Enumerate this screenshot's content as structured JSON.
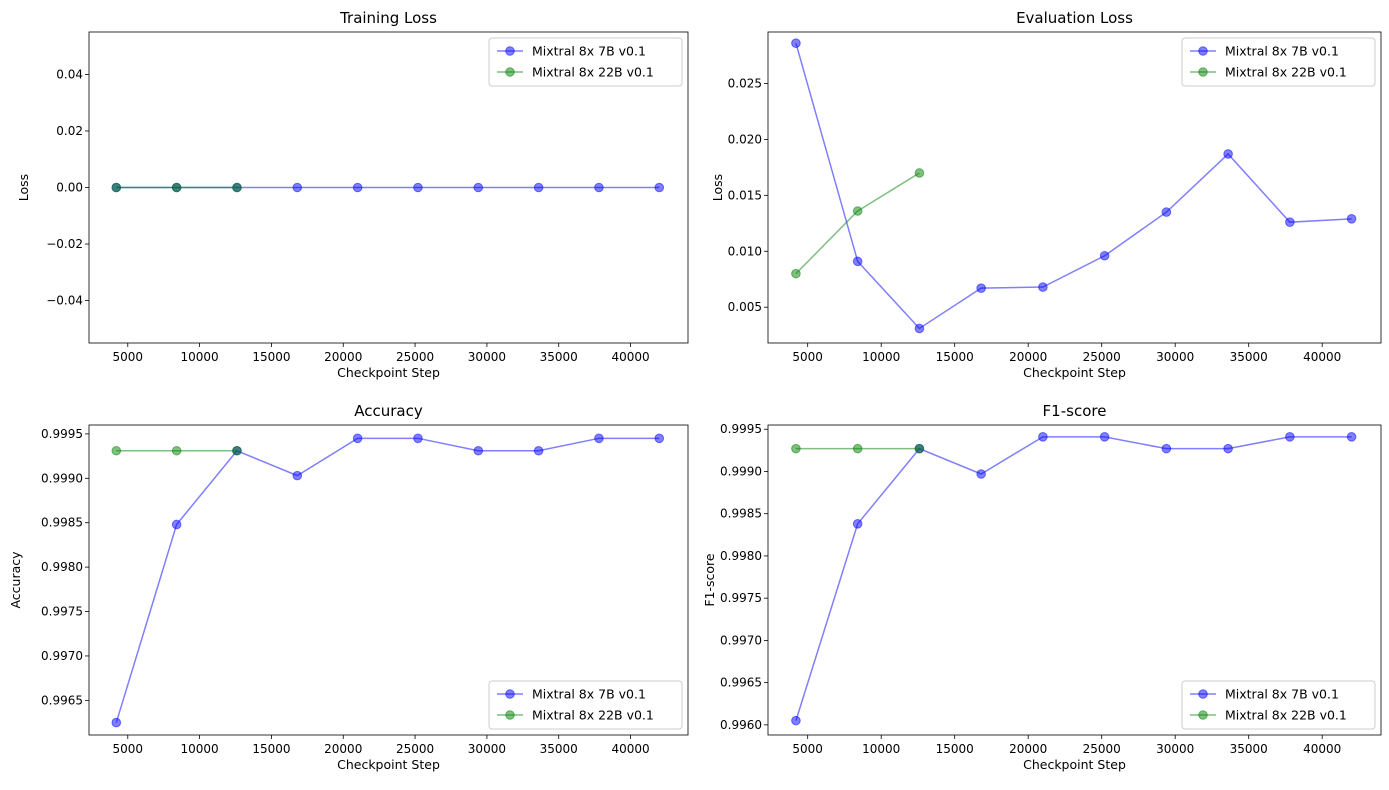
{
  "chart_data": [
    {
      "type": "line",
      "title": "Training Loss",
      "xlabel": "Checkpoint Step",
      "ylabel": "Loss",
      "xlim": [
        2300,
        44000
      ],
      "ylim": [
        -0.055,
        0.055
      ],
      "xticks": [
        5000,
        10000,
        15000,
        20000,
        25000,
        30000,
        35000,
        40000
      ],
      "yticks": [
        -0.04,
        -0.02,
        0.0,
        0.02,
        0.04
      ],
      "ytick_labels": [
        "−0.04",
        "−0.02",
        "0.00",
        "0.02",
        "0.04"
      ],
      "legend_position": "upper right",
      "grid": false,
      "series": [
        {
          "name": "Mixtral 8x 7B v0.1",
          "color": "#0000ff",
          "x": [
            4200,
            8400,
            12600,
            16800,
            21000,
            25200,
            29400,
            33600,
            37800,
            42000
          ],
          "y": [
            0,
            0,
            0,
            0,
            0,
            0,
            0,
            0,
            0,
            0
          ]
        },
        {
          "name": "Mixtral 8x 22B v0.1",
          "color": "#008000",
          "x": [
            4200,
            8400,
            12600
          ],
          "y": [
            0,
            0,
            0
          ]
        }
      ]
    },
    {
      "type": "line",
      "title": "Evaluation Loss",
      "xlabel": "Checkpoint Step",
      "ylabel": "Loss",
      "xlim": [
        2300,
        44000
      ],
      "ylim": [
        0.0018,
        0.0296
      ],
      "xticks": [
        5000,
        10000,
        15000,
        20000,
        25000,
        30000,
        35000,
        40000
      ],
      "yticks": [
        0.005,
        0.01,
        0.015,
        0.02,
        0.025
      ],
      "ytick_labels": [
        "0.005",
        "0.010",
        "0.015",
        "0.020",
        "0.025"
      ],
      "legend_position": "upper right",
      "grid": false,
      "series": [
        {
          "name": "Mixtral 8x 7B v0.1",
          "color": "#0000ff",
          "x": [
            4200,
            8400,
            12600,
            16800,
            21000,
            25200,
            29400,
            33600,
            37800,
            42000
          ],
          "y": [
            0.0286,
            0.0091,
            0.0031,
            0.0067,
            0.0068,
            0.0096,
            0.0135,
            0.0187,
            0.0126,
            0.0129
          ]
        },
        {
          "name": "Mixtral 8x 22B v0.1",
          "color": "#008000",
          "x": [
            4200,
            8400,
            12600
          ],
          "y": [
            0.008,
            0.0136,
            0.017
          ]
        }
      ]
    },
    {
      "type": "line",
      "title": "Accuracy",
      "xlabel": "Checkpoint Step",
      "ylabel": "Accuracy",
      "xlim": [
        2300,
        44000
      ],
      "ylim": [
        0.99611,
        0.9996
      ],
      "xticks": [
        5000,
        10000,
        15000,
        20000,
        25000,
        30000,
        35000,
        40000
      ],
      "yticks": [
        0.9965,
        0.997,
        0.9975,
        0.998,
        0.9985,
        0.999,
        0.9995
      ],
      "ytick_labels": [
        "0.9965",
        "0.9970",
        "0.9975",
        "0.9980",
        "0.9985",
        "0.9990",
        "0.9995"
      ],
      "legend_position": "lower right",
      "grid": false,
      "series": [
        {
          "name": "Mixtral 8x 7B v0.1",
          "color": "#0000ff",
          "x": [
            4200,
            8400,
            12600,
            16800,
            21000,
            25200,
            29400,
            33600,
            37800,
            42000
          ],
          "y": [
            0.99625,
            0.99848,
            0.99931,
            0.99903,
            0.99945,
            0.99945,
            0.99931,
            0.99931,
            0.99945,
            0.99945
          ]
        },
        {
          "name": "Mixtral 8x 22B v0.1",
          "color": "#008000",
          "x": [
            4200,
            8400,
            12600
          ],
          "y": [
            0.99931,
            0.99931,
            0.99931
          ]
        }
      ]
    },
    {
      "type": "line",
      "title": "F1-score",
      "xlabel": "Checkpoint Step",
      "ylabel": "F1-score",
      "xlim": [
        2300,
        44000
      ],
      "ylim": [
        0.99588,
        0.99955
      ],
      "xticks": [
        5000,
        10000,
        15000,
        20000,
        25000,
        30000,
        35000,
        40000
      ],
      "yticks": [
        0.996,
        0.9965,
        0.997,
        0.9975,
        0.998,
        0.9985,
        0.999,
        0.9995
      ],
      "ytick_labels": [
        "0.9960",
        "0.9965",
        "0.9970",
        "0.9975",
        "0.9980",
        "0.9985",
        "0.9990",
        "0.9995"
      ],
      "legend_position": "lower right",
      "grid": false,
      "series": [
        {
          "name": "Mixtral 8x 7B v0.1",
          "color": "#0000ff",
          "x": [
            4200,
            8400,
            12600,
            16800,
            21000,
            25200,
            29400,
            33600,
            37800,
            42000
          ],
          "y": [
            0.99605,
            0.99838,
            0.99927,
            0.99897,
            0.99941,
            0.99941,
            0.99927,
            0.99927,
            0.99941,
            0.99941
          ]
        },
        {
          "name": "Mixtral 8x 22B v0.1",
          "color": "#008000",
          "x": [
            4200,
            8400,
            12600
          ],
          "y": [
            0.99927,
            0.99927,
            0.99927
          ]
        }
      ]
    }
  ]
}
